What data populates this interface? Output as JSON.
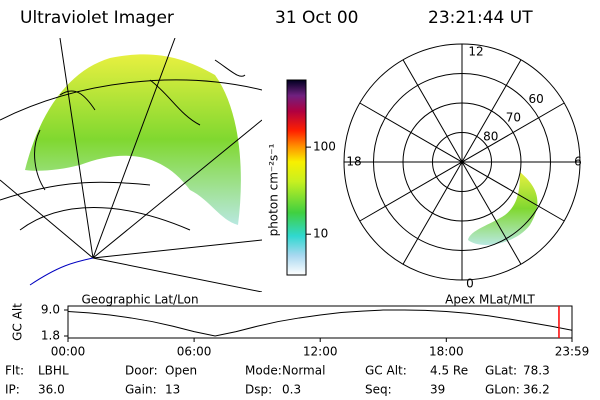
{
  "header": {
    "instrument": "Ultraviolet Imager",
    "date": "31 Oct 00",
    "time": "23:21:44 UT"
  },
  "colorbar": {
    "label": "photon cm⁻²s⁻¹",
    "log": true,
    "range": [
      3.4,
      590
    ],
    "ticks": [
      10,
      100
    ]
  },
  "polar": {
    "rlim": [
      90,
      50
    ],
    "rings": [
      80,
      70,
      60
    ],
    "mlt_labels": {
      "top": "12",
      "right": "6",
      "bottom": "0",
      "left": "18"
    }
  },
  "panel_labels": {
    "left": "Geographic Lat/Lon",
    "right": "Apex MLat/MLT"
  },
  "altitude_chart": {
    "type": "line",
    "y_label": "GC Alt",
    "color": "#000000",
    "x": [
      0,
      1,
      2,
      3,
      4,
      5,
      6,
      7,
      8,
      9,
      10,
      11,
      12,
      13,
      14,
      15,
      16,
      17,
      18,
      19,
      20,
      21,
      22,
      23,
      23.98
    ],
    "values": [
      8.6,
      8.2,
      7.6,
      6.8,
      5.8,
      4.5,
      3.0,
      1.8,
      3.0,
      4.5,
      5.8,
      6.8,
      7.6,
      8.3,
      8.7,
      9.0,
      9.0,
      8.9,
      8.6,
      8.1,
      7.4,
      6.5,
      5.5,
      4.5,
      3.4
    ],
    "xlim": [
      0,
      23.98
    ],
    "ylim": [
      1.8,
      9.0
    ],
    "xticks": [
      {
        "value": 0,
        "label": "00:00"
      },
      {
        "value": 6,
        "label": "06:00"
      },
      {
        "value": 12,
        "label": "12:00"
      },
      {
        "value": 18,
        "label": "18:00"
      },
      {
        "value": 23.98,
        "label": "23:59"
      }
    ],
    "yticks": [
      {
        "value": 9.0,
        "label": "9.0"
      },
      {
        "value": 1.8,
        "label": "1.8"
      }
    ],
    "marker": 23.36,
    "marker_color": "#ff0000"
  },
  "info": [
    [
      {
        "label": "Flt:",
        "value": "LBHL"
      },
      {
        "label": "Door:",
        "value": "Open"
      },
      {
        "label": "Mode:",
        "value": "Normal"
      },
      {
        "label": "GC Alt:",
        "value": "4.5 Re"
      },
      {
        "label": "GLat:",
        "value": "78.3"
      }
    ],
    [
      {
        "label": "IP:",
        "value": "36.0"
      },
      {
        "label": "Gain:",
        "value": "13"
      },
      {
        "label": "Dsp:",
        "value": "0.3"
      },
      {
        "label": "Seq:",
        "value": "39"
      },
      {
        "label": "GLon:",
        "value": "36.2"
      }
    ]
  ]
}
